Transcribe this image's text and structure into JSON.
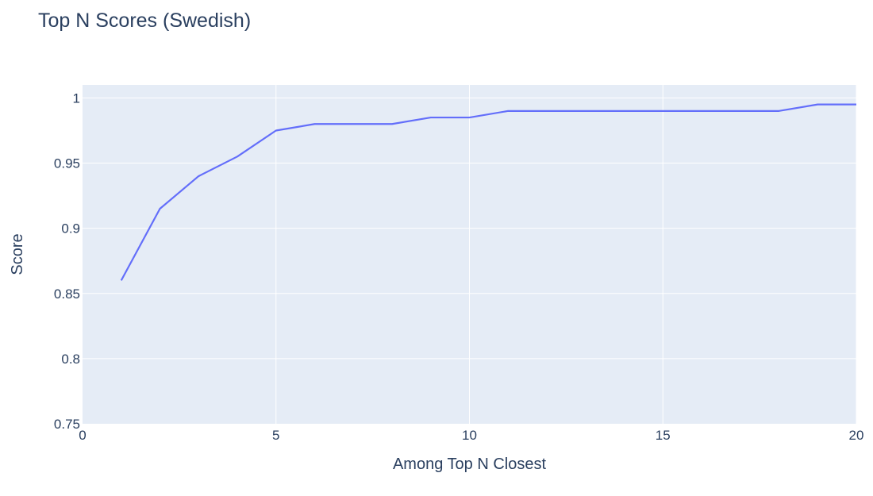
{
  "chart_data": {
    "type": "line",
    "title": "Top N Scores (Swedish)",
    "xlabel": "Among Top N Closest",
    "ylabel": "Score",
    "xlim": [
      0,
      20
    ],
    "ylim": [
      0.75,
      1.01
    ],
    "xticks": [
      0,
      5,
      10,
      15,
      20
    ],
    "xtick_labels": [
      "0",
      "5",
      "10",
      "15",
      "20"
    ],
    "yticks": [
      0.75,
      0.8,
      0.85,
      0.9,
      0.95,
      1
    ],
    "ytick_labels": [
      "0.75",
      "0.8",
      "0.85",
      "0.9",
      "0.95",
      "1"
    ],
    "grid": true,
    "series": [
      {
        "x": [
          1,
          2,
          3,
          4,
          5,
          6,
          7,
          8,
          9,
          10,
          11,
          12,
          13,
          14,
          15,
          16,
          17,
          18,
          19,
          20
        ],
        "y": [
          0.86,
          0.915,
          0.94,
          0.955,
          0.975,
          0.98,
          0.98,
          0.98,
          0.985,
          0.985,
          0.99,
          0.99,
          0.99,
          0.99,
          0.99,
          0.99,
          0.99,
          0.99,
          0.995,
          0.995
        ],
        "color": "#636efa"
      }
    ],
    "colors": {
      "plot_background": "#e5ecf6",
      "grid": "#ffffff",
      "text": "#2a3f5f"
    }
  }
}
